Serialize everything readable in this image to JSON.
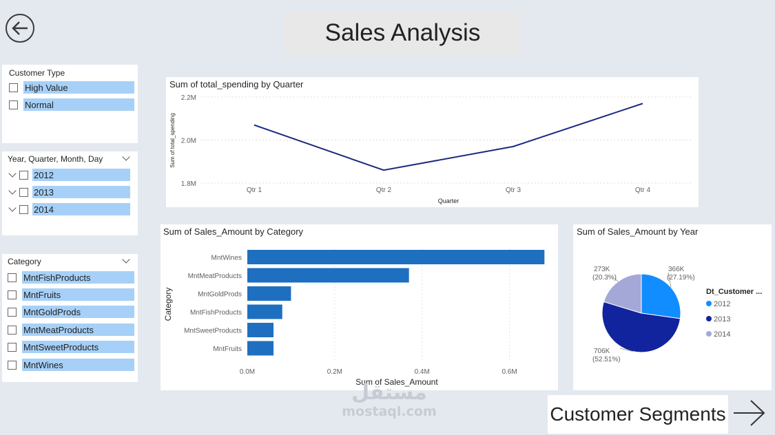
{
  "page": {
    "title": "Sales Analysis",
    "nav_forward_label": "Customer Segments",
    "watermark_main": "مستقل",
    "watermark_sub": "mostaql.com"
  },
  "colors": {
    "background": "#e4e8ef",
    "line": "#1a2a80",
    "bar": "#1f6fc0",
    "slicer_highlight": "#a6d0f7"
  },
  "slicers": {
    "customer_type": {
      "title": "Customer Type",
      "items": [
        "High Value",
        "Normal"
      ]
    },
    "date": {
      "title": "Year, Quarter, Month, Day",
      "items": [
        "2012",
        "2013",
        "2014"
      ]
    },
    "category": {
      "title": "Category",
      "items": [
        "MntFishProducts",
        "MntFruits",
        "MntGoldProds",
        "MntMeatProducts",
        "MntSweetProducts",
        "MntWines"
      ]
    }
  },
  "chart_data": [
    {
      "type": "line",
      "title": "Sum of total_spending by Quarter",
      "xlabel": "Quarter",
      "ylabel": "Sum of total_spending",
      "x": [
        "Qtr 1",
        "Qtr 2",
        "Qtr 3",
        "Qtr 4"
      ],
      "values": [
        2.07,
        1.86,
        1.97,
        2.17
      ],
      "unit": "M",
      "yticks": [
        "1.8M",
        "2.0M",
        "2.2M"
      ],
      "ylim": [
        1.8,
        2.2
      ],
      "grid": true
    },
    {
      "type": "bar",
      "orientation": "horizontal",
      "title": "Sum of Sales_Amount by Category",
      "xlabel": "Sum of Sales_Amount",
      "ylabel": "Category",
      "categories": [
        "MntWines",
        "MntMeatProducts",
        "MntGoldProds",
        "MntFishProducts",
        "MntSweetProducts",
        "MntFruits"
      ],
      "values": [
        0.68,
        0.37,
        0.1,
        0.08,
        0.06,
        0.06
      ],
      "unit": "M",
      "xticks": [
        "0.0M",
        "0.2M",
        "0.4M",
        "0.6M"
      ],
      "xlim": [
        0,
        0.7
      ],
      "grid": true
    },
    {
      "type": "pie",
      "title": "Sum of Sales_Amount by Year",
      "legend_title": "Dt_Customer ...",
      "legend_position": "right",
      "slices": [
        {
          "label": "2012",
          "value": 366,
          "display": "366K",
          "percent": "(27.19%)",
          "color": "#118dff"
        },
        {
          "label": "2013",
          "value": 706,
          "display": "706K",
          "percent": "(52.51%)",
          "color": "#12239e"
        },
        {
          "label": "2014",
          "value": 273,
          "display": "273K",
          "percent": "(20.3%)",
          "color": "#a3a8d6"
        }
      ]
    }
  ]
}
